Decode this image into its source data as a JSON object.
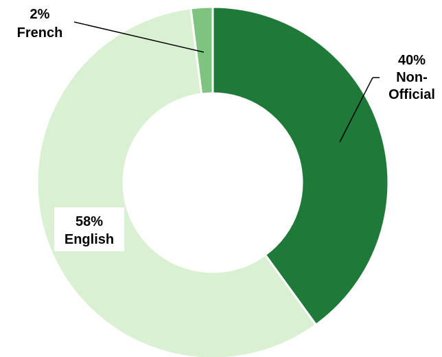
{
  "chart_data": {
    "type": "pie",
    "variant": "donut",
    "title": "",
    "legend": "none",
    "slices": [
      {
        "pct_label": "40%",
        "name_lines": [
          "Non-",
          "Official"
        ],
        "value": 40,
        "color": "#1f7a3a"
      },
      {
        "pct_label": "58%",
        "name_lines": [
          "English"
        ],
        "value": 58,
        "color": "#d9f0d3"
      },
      {
        "pct_label": "2%",
        "name_lines": [
          "French"
        ],
        "value": 2,
        "color": "#7fc47e"
      }
    ]
  }
}
